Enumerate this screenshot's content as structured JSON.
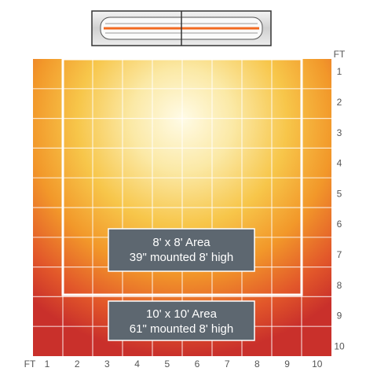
{
  "axis_unit": "FT",
  "x_labels": [
    "1",
    "2",
    "3",
    "4",
    "5",
    "6",
    "7",
    "8",
    "9",
    "10"
  ],
  "y_labels": [
    "1",
    "2",
    "3",
    "4",
    "5",
    "6",
    "7",
    "8",
    "9",
    "10"
  ],
  "areas": [
    {
      "title": "8' x 8' Area",
      "subtitle": "39\" mounted 8' high"
    },
    {
      "title": "10' x 10' Area",
      "subtitle": "61\" mounted 8' high"
    }
  ]
}
